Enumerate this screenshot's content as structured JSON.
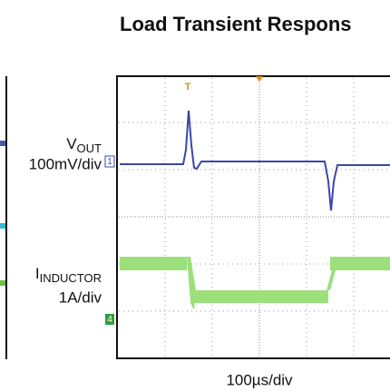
{
  "title": "Load Transient Respons",
  "traces": [
    {
      "label": "V",
      "subscript": "OUT",
      "scale": "100mV/div",
      "marker": "1"
    },
    {
      "label": "I",
      "subscript": "INDUCTOR",
      "scale": "1A/div",
      "marker": "4"
    }
  ],
  "time_scale": "100µs/div",
  "trigger_marker": "T"
}
